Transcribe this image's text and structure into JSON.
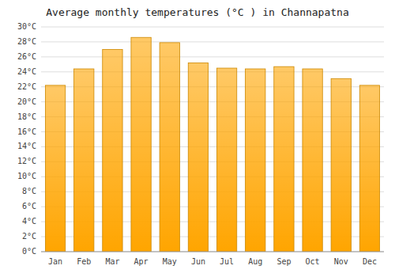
{
  "chart_data": {
    "type": "bar",
    "title": "Average monthly temperatures (°C ) in Channapatna",
    "categories": [
      "Jan",
      "Feb",
      "Mar",
      "Apr",
      "May",
      "Jun",
      "Jul",
      "Aug",
      "Sep",
      "Oct",
      "Nov",
      "Dec"
    ],
    "values": [
      22.2,
      24.4,
      27.0,
      28.6,
      27.9,
      25.2,
      24.5,
      24.4,
      24.7,
      24.4,
      23.1,
      22.2
    ],
    "color": "#FFA500",
    "ylim": [
      0,
      30
    ],
    "yticks": [
      {
        "value": 0,
        "label": "0°C"
      },
      {
        "value": 2,
        "label": "2°C"
      },
      {
        "value": 4,
        "label": "4°C"
      },
      {
        "value": 6,
        "label": "6°C"
      },
      {
        "value": 8,
        "label": "8°C"
      },
      {
        "value": 10,
        "label": "10°C"
      },
      {
        "value": 12,
        "label": "12°C"
      },
      {
        "value": 14,
        "label": "14°C"
      },
      {
        "value": 16,
        "label": "16°C"
      },
      {
        "value": 18,
        "label": "18°C"
      },
      {
        "value": 20,
        "label": "20°C"
      },
      {
        "value": 22,
        "label": "22°C"
      },
      {
        "value": 24,
        "label": "24°C"
      },
      {
        "value": 26,
        "label": "26°C"
      },
      {
        "value": 28,
        "label": "28°C"
      },
      {
        "value": 30,
        "label": "30°C"
      }
    ],
    "grid": true
  }
}
